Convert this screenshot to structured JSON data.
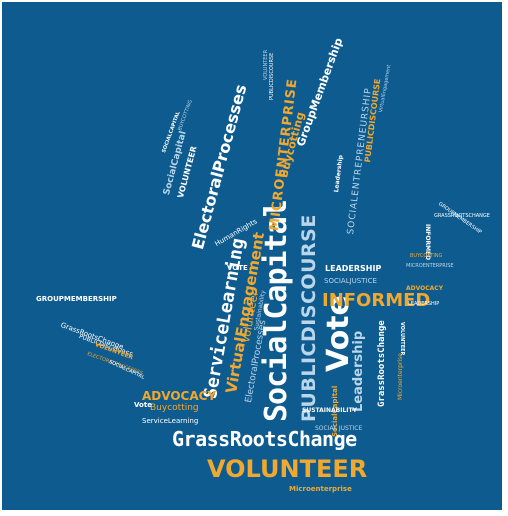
{
  "words": {
    "grassroots_change": "GrassRootsChange",
    "volunteer": "VOLUNTEER",
    "microenterprise_bottom": "Microenterprise",
    "social_capital": "SocialCapital",
    "public_discourse": "PUBLICDISCOURSE",
    "informed": "INFORMED",
    "vote_big": "Vote",
    "leadership": "Leadership",
    "leadership_caps": "LEADERSHIP",
    "social_justice": "SOCIALJUSTICE",
    "grassroots_change_small": "GrassRootsChange",
    "service_learning": "ServiceLearning",
    "virtual_engagement": "VirtualEngagement",
    "volunteer_vertical": "Volunteer",
    "electoral_processes": "ElectoralProcesses",
    "electoral_processes_small": "ElectoralProcesses",
    "human_rights": "HumanRights",
    "social_capital_small": "SocialCapital",
    "volunteer_small": "VOLUNTEER",
    "microenterprise": "MICROENTERPRISE",
    "buycotting": "Buycotting",
    "group_membership": "GroupMembership",
    "social_entrepreneurship": "SOCIALENTREPRENEURSHIP",
    "public_discourse_small": "PUBLICDISCOURSE",
    "virtual_engagement_small": "VirtualEngagement",
    "advocacy": "ADVOCACY",
    "buycotting_small": "Buycotting",
    "vote_small": "Vote",
    "service_learning_small": "ServiceLearning",
    "group_membership_small": "GROUPMEMBERSHIP",
    "grassroots_change_left": "GrassRootsChange",
    "public_discourse_left": "PUBLICDISCOURSE",
    "volunteer_left": "VOLUNTEER",
    "electoral_processes_left": "ELECTORALPROCESSES",
    "social_capital_left": "SOCIALCAPITAL",
    "sustainability": "SUSTAINABILITY",
    "sustainability_small": "Sustainability",
    "vote_mid": "VOTE",
    "social_capital_yellow": "SocialCapital",
    "social_justice_mid": "SOCIAL JUSTICE",
    "buycotting_right": "BUYCOTTING",
    "microenterprise_right": "MICROENTERPRISE",
    "group_membership_right": "GROUPMEMBERSHIP",
    "grassroots_change_right": "GRASSROOTSCHANGE",
    "informed_right": "INFORMED",
    "advocacy_right": "ADVOCACY",
    "leadership_right": "LEADERSHIP",
    "volunteer_right": "VOLUNTEER",
    "leadership_small": "Leadership",
    "microenterprise_small": "Microenterprise",
    "volunteers_top": "VOLUNTEER",
    "public_discourse_top": "PUBLICDISCOURSE",
    "virtual_engagement_top": "VirtualEngagement",
    "buycotting_top": "BUYCOTTING",
    "social_capital_top": "SOCIALCAPITAL"
  },
  "colors": {
    "background": "#0e5b8f",
    "accent_yellow": "#f1a82f",
    "text_white": "#ffffff",
    "text_light_blue": "#b9d6ea"
  }
}
